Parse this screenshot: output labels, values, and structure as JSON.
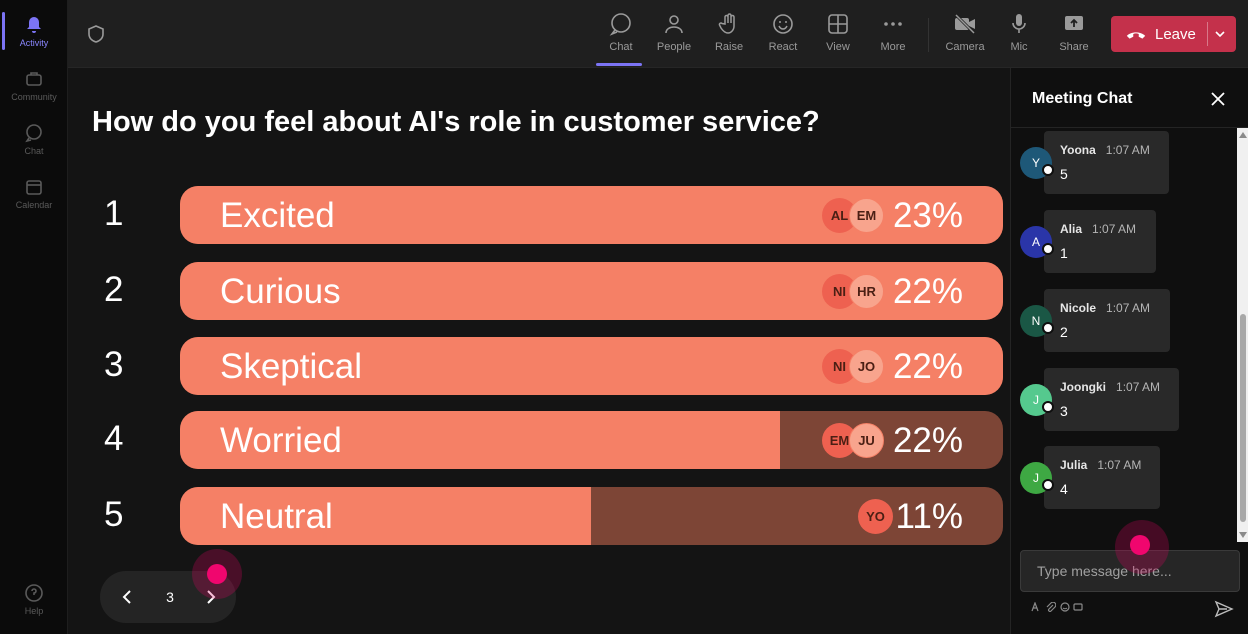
{
  "rail": {
    "items": [
      {
        "label": "Activity",
        "icon": "bell-icon",
        "active": true
      },
      {
        "label": "Community",
        "icon": "community-icon"
      },
      {
        "label": "Chat",
        "icon": "chat-icon"
      },
      {
        "label": "Calendar",
        "icon": "calendar-icon"
      }
    ],
    "help_label": "Help"
  },
  "toolbar": {
    "chat": "Chat",
    "people": "People",
    "raise": "Raise",
    "react": "React",
    "view": "View",
    "more": "More",
    "camera": "Camera",
    "mic": "Mic",
    "share": "Share",
    "leave": "Leave"
  },
  "poll": {
    "question": "How do you feel about AI's role in customer service?",
    "options": [
      {
        "num": "1",
        "label": "Excited",
        "pct": "23%",
        "fill": 1.0,
        "avatars": [
          "AL",
          "EM"
        ]
      },
      {
        "num": "2",
        "label": "Curious",
        "pct": "22%",
        "fill": 1.0,
        "avatars": [
          "NI",
          "HR"
        ]
      },
      {
        "num": "3",
        "label": "Skeptical",
        "pct": "22%",
        "fill": 1.0,
        "avatars": [
          "NI",
          "JO"
        ]
      },
      {
        "num": "4",
        "label": "Worried",
        "pct": "22%",
        "fill": 0.729,
        "avatars": [
          "EM",
          "JU"
        ]
      },
      {
        "num": "5",
        "label": "Neutral",
        "pct": "11%",
        "fill": 0.499,
        "avatars": [
          "YO"
        ]
      }
    ],
    "page": "3"
  },
  "chat": {
    "title": "Meeting Chat",
    "messages": [
      {
        "initial": "Y",
        "name": "Yoona",
        "time": "1:07 AM",
        "text": "5",
        "color": "#1e5878"
      },
      {
        "initial": "A",
        "name": "Alia",
        "time": "1:07 AM",
        "text": "1",
        "color": "#2a35a8"
      },
      {
        "initial": "N",
        "name": "Nicole",
        "time": "1:07 AM",
        "text": "2",
        "color": "#1a5745"
      },
      {
        "initial": "J",
        "name": "Joongki",
        "time": "1:07 AM",
        "text": "3",
        "color": "#55c98e"
      },
      {
        "initial": "J",
        "name": "Julia",
        "time": "1:07 AM",
        "text": "4",
        "color": "#3ea843"
      }
    ],
    "input_placeholder": "Type message here..."
  },
  "colors": {
    "bar_fill": "#f58066",
    "bar_track": "#7d4536",
    "leave": "#c4314b",
    "accent": "#7c74f5"
  }
}
